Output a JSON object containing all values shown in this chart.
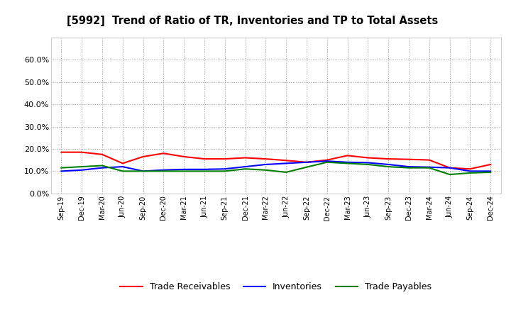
{
  "title": "[5992]  Trend of Ratio of TR, Inventories and TP to Total Assets",
  "x_labels": [
    "Sep-19",
    "Dec-19",
    "Mar-20",
    "Jun-20",
    "Sep-20",
    "Dec-20",
    "Mar-21",
    "Jun-21",
    "Sep-21",
    "Dec-21",
    "Mar-22",
    "Jun-22",
    "Sep-22",
    "Dec-22",
    "Mar-23",
    "Jun-23",
    "Sep-23",
    "Dec-23",
    "Mar-24",
    "Jun-24",
    "Sep-24",
    "Dec-24"
  ],
  "trade_receivables": [
    0.185,
    0.185,
    0.175,
    0.135,
    0.165,
    0.18,
    0.165,
    0.155,
    0.155,
    0.16,
    0.155,
    0.148,
    0.14,
    0.15,
    0.17,
    0.16,
    0.155,
    0.153,
    0.15,
    0.115,
    0.11,
    0.13
  ],
  "inventories": [
    0.1,
    0.105,
    0.115,
    0.12,
    0.1,
    0.105,
    0.108,
    0.108,
    0.11,
    0.12,
    0.13,
    0.135,
    0.14,
    0.145,
    0.14,
    0.138,
    0.13,
    0.12,
    0.118,
    0.115,
    0.1,
    0.1
  ],
  "trade_payables": [
    0.115,
    0.12,
    0.125,
    0.1,
    0.1,
    0.1,
    0.1,
    0.1,
    0.1,
    0.11,
    0.105,
    0.095,
    0.118,
    0.14,
    0.135,
    0.13,
    0.12,
    0.115,
    0.115,
    0.085,
    0.092,
    0.095
  ],
  "ylim": [
    0.0,
    0.7
  ],
  "yticks": [
    0.0,
    0.1,
    0.2,
    0.3,
    0.4,
    0.5,
    0.6
  ],
  "tr_color": "#FF0000",
  "inv_color": "#0000FF",
  "tp_color": "#008000",
  "background_color": "#FFFFFF",
  "grid_color": "#999999",
  "legend_labels": [
    "Trade Receivables",
    "Inventories",
    "Trade Payables"
  ]
}
